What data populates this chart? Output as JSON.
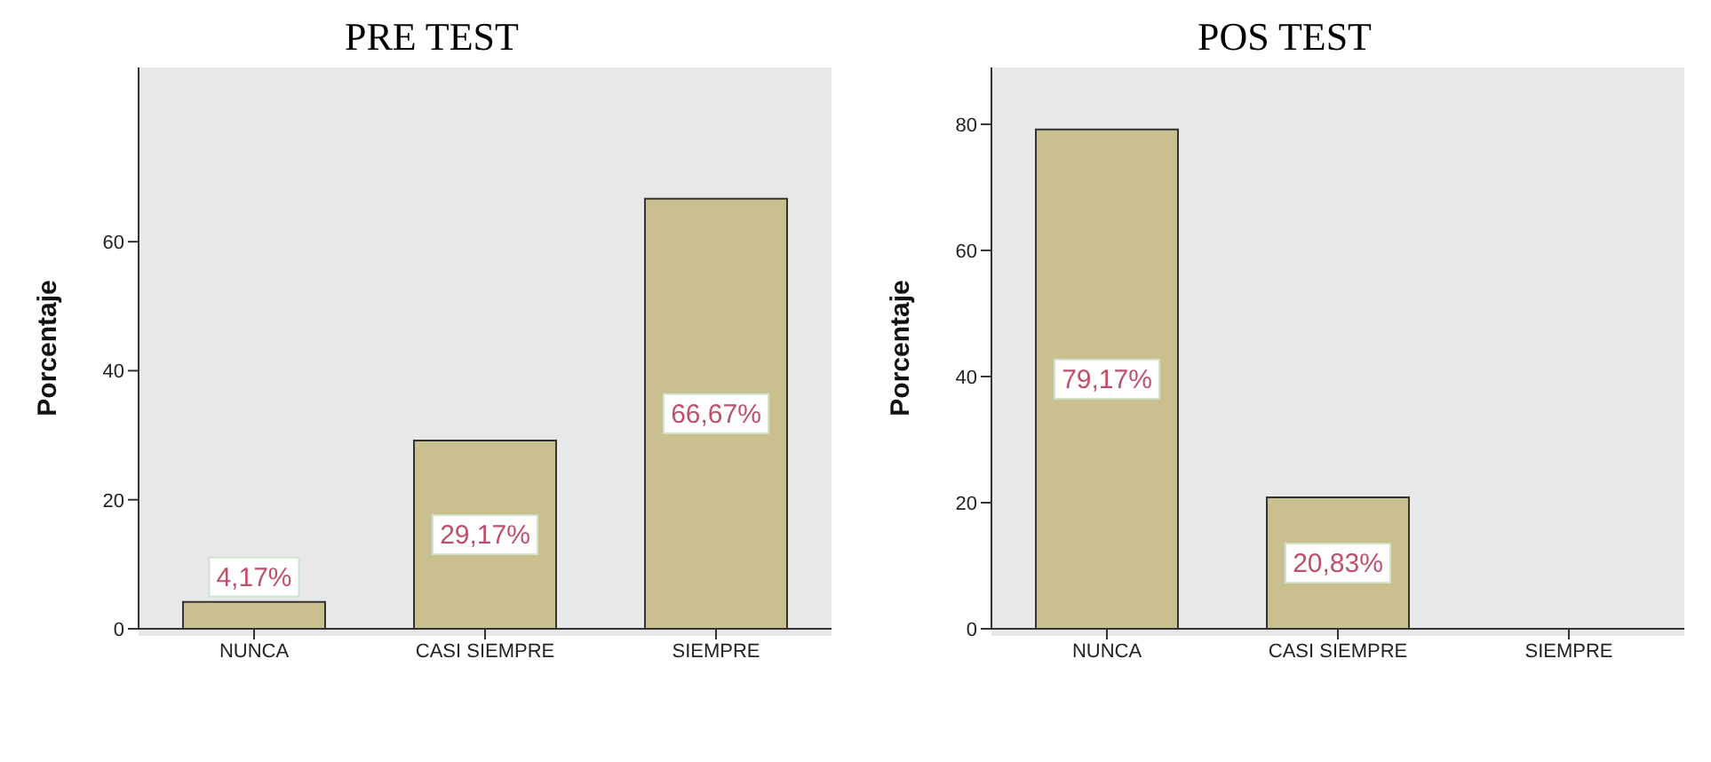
{
  "chart_data": [
    {
      "type": "bar",
      "title": "PRE TEST",
      "ylabel": "Porcentaje",
      "categories": [
        "NUNCA",
        "CASI SIEMPRE",
        "SIEMPRE"
      ],
      "values": [
        4.17,
        29.17,
        66.67
      ],
      "color": "#c9bf8f",
      "value_labels": [
        "4,17%",
        "29,17%",
        "66,67%"
      ],
      "ylim": [
        0,
        87
      ],
      "yticks": [
        0,
        20,
        40,
        60
      ],
      "grid": false,
      "legend": false
    },
    {
      "type": "bar",
      "title": "POS TEST",
      "ylabel": "Porcentaje",
      "categories": [
        "NUNCA",
        "CASI SIEMPRE",
        "SIEMPRE"
      ],
      "values": [
        79.17,
        20.83,
        0
      ],
      "color": "#c9bf8f",
      "value_labels": [
        "79,17%",
        "20,83%",
        null
      ],
      "ylim": [
        0,
        89
      ],
      "yticks": [
        0,
        20,
        40,
        60,
        80
      ],
      "grid": false,
      "legend": false
    }
  ]
}
